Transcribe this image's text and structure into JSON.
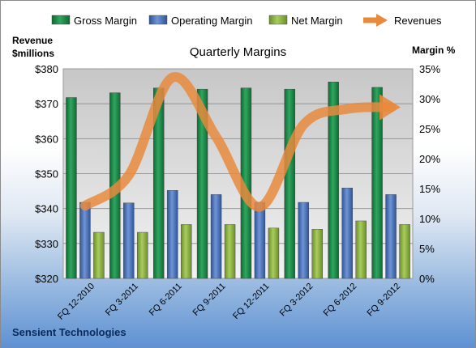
{
  "chart_data": {
    "type": "bar",
    "title": "Quarterly Margins",
    "subtitle": "",
    "ylabel_left": [
      "Revenue",
      "$millions"
    ],
    "ylabel_right": "Margin %",
    "footer": "Sensient Technologies",
    "categories": [
      "FQ 12-2010",
      "FQ 3-2011",
      "FQ 6-2011",
      "FQ 9-2011",
      "FQ 12-2011",
      "FQ 3-2012",
      "FQ 6-2012",
      "FQ 9-2012"
    ],
    "left_axis": {
      "min": 320,
      "max": 380,
      "step": 10,
      "format": "$"
    },
    "right_axis": {
      "min": 0,
      "max": 35,
      "step": 5,
      "format": "%"
    },
    "series": [
      {
        "name": "Gross Margin",
        "axis": "right",
        "kind": "bar",
        "color": "#1f8a4c",
        "values": [
          30.2,
          31.0,
          31.8,
          31.6,
          31.8,
          31.6,
          32.8,
          31.9
        ]
      },
      {
        "name": "Operating Margin",
        "axis": "right",
        "kind": "bar",
        "color": "#4a75c2",
        "values": [
          12.7,
          12.6,
          14.7,
          14.0,
          12.7,
          12.7,
          15.1,
          14.0
        ]
      },
      {
        "name": "Net Margin",
        "axis": "right",
        "kind": "bar",
        "color": "#8db640",
        "values": [
          7.7,
          7.7,
          9.0,
          9.0,
          8.4,
          8.2,
          9.6,
          9.0
        ]
      },
      {
        "name": "Revenues",
        "axis": "left",
        "kind": "line",
        "color": "#e88a3d",
        "values": [
          340.8,
          349.5,
          377.5,
          360.5,
          340.5,
          364.0,
          368.5,
          369.0
        ]
      }
    ],
    "grid": true,
    "legend_position": "top"
  }
}
